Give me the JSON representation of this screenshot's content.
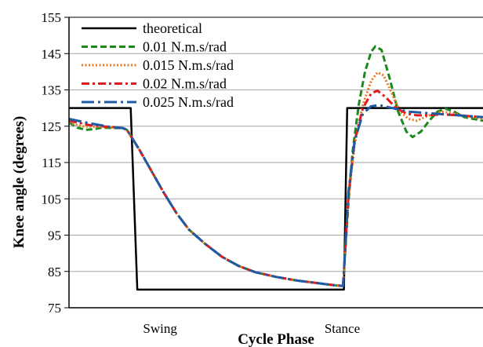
{
  "chart_data": {
    "type": "line",
    "xlabel": "Cycle Phase",
    "ylabel": "Knee angle (degrees)",
    "ylim": [
      75,
      155
    ],
    "yticks": [
      75,
      85,
      95,
      105,
      115,
      125,
      135,
      145,
      155
    ],
    "xlim": [
      0,
      100
    ],
    "xtick_labels": [
      {
        "label": "Swing",
        "x": 22
      },
      {
        "label": "Stance",
        "x": 66
      }
    ],
    "grid": "horizontal",
    "legend_position": "top-left",
    "series": [
      {
        "name": "theoretical",
        "color": "#000000",
        "dash": "solid",
        "points": [
          [
            0,
            130
          ],
          [
            14.9,
            130
          ],
          [
            16.5,
            80
          ],
          [
            66.4,
            80
          ],
          [
            67.2,
            130
          ],
          [
            100,
            130
          ]
        ]
      },
      {
        "name": "0.01 N.m.s/rad",
        "color": "#1a8a1a",
        "dash": "dashed",
        "points": [
          [
            0,
            126
          ],
          [
            2,
            124.6
          ],
          [
            4,
            124
          ],
          [
            6,
            124.2
          ],
          [
            8,
            124.6
          ],
          [
            11,
            124.5
          ],
          [
            13,
            124.5
          ],
          [
            14,
            124
          ],
          [
            17,
            118.5
          ],
          [
            20,
            112.5
          ],
          [
            23,
            106.5
          ],
          [
            26,
            101
          ],
          [
            29,
            96.5
          ],
          [
            33,
            92.5
          ],
          [
            37,
            89
          ],
          [
            41,
            86.5
          ],
          [
            45,
            84.8
          ],
          [
            50,
            83.5
          ],
          [
            55,
            82.5
          ],
          [
            60,
            81.8
          ],
          [
            64,
            81.2
          ],
          [
            66.2,
            81
          ],
          [
            67.5,
            104
          ],
          [
            68.5,
            118
          ],
          [
            70,
            131
          ],
          [
            71.5,
            140
          ],
          [
            73,
            145.5
          ],
          [
            74,
            147
          ],
          [
            75.5,
            146
          ],
          [
            77.5,
            138
          ],
          [
            79.5,
            129
          ],
          [
            81.5,
            123.5
          ],
          [
            83,
            122
          ],
          [
            85,
            123.5
          ],
          [
            87,
            126.5
          ],
          [
            89,
            129
          ],
          [
            91,
            129.8
          ],
          [
            93,
            129
          ],
          [
            95.5,
            127.5
          ],
          [
            100,
            126.5
          ]
        ]
      },
      {
        "name": "0.015 N.m.s/rad",
        "color": "#e87722",
        "dash": "dotted",
        "points": [
          [
            0,
            126
          ],
          [
            3,
            125
          ],
          [
            7,
            124.8
          ],
          [
            11,
            124.6
          ],
          [
            13,
            124.5
          ],
          [
            14,
            124
          ],
          [
            17,
            118.5
          ],
          [
            20,
            112.5
          ],
          [
            23,
            106.5
          ],
          [
            26,
            101
          ],
          [
            29,
            96.5
          ],
          [
            33,
            92.5
          ],
          [
            37,
            89
          ],
          [
            41,
            86.5
          ],
          [
            45,
            84.8
          ],
          [
            50,
            83.5
          ],
          [
            55,
            82.5
          ],
          [
            60,
            81.8
          ],
          [
            64,
            81.2
          ],
          [
            66.2,
            81
          ],
          [
            67.5,
            105
          ],
          [
            69,
            120
          ],
          [
            71,
            131
          ],
          [
            73,
            137.5
          ],
          [
            74.5,
            139.8
          ],
          [
            76,
            139
          ],
          [
            78,
            134
          ],
          [
            80,
            129
          ],
          [
            82,
            127
          ],
          [
            84,
            126.5
          ],
          [
            86,
            127.5
          ],
          [
            88,
            128.5
          ],
          [
            90,
            129
          ],
          [
            93,
            128.5
          ],
          [
            96,
            127.8
          ],
          [
            100,
            127
          ]
        ]
      },
      {
        "name": "0.02 N.m.s/rad",
        "color": "#e31a1c",
        "dash": "dashdot",
        "points": [
          [
            0,
            126.5
          ],
          [
            5,
            125.3
          ],
          [
            10,
            124.8
          ],
          [
            13,
            124.5
          ],
          [
            14,
            124
          ],
          [
            17,
            118.5
          ],
          [
            20,
            112.5
          ],
          [
            23,
            106.5
          ],
          [
            26,
            101
          ],
          [
            29,
            96.5
          ],
          [
            33,
            92.5
          ],
          [
            37,
            89
          ],
          [
            41,
            86.5
          ],
          [
            45,
            84.8
          ],
          [
            50,
            83.5
          ],
          [
            55,
            82.5
          ],
          [
            60,
            81.8
          ],
          [
            64,
            81.2
          ],
          [
            66.2,
            81
          ],
          [
            67.5,
            106
          ],
          [
            69,
            121
          ],
          [
            71,
            130
          ],
          [
            73,
            134
          ],
          [
            74.5,
            134.8
          ],
          [
            76.5,
            133
          ],
          [
            79,
            130
          ],
          [
            81.5,
            128.5
          ],
          [
            84,
            128
          ],
          [
            87,
            128
          ],
          [
            90,
            128.3
          ],
          [
            94,
            128
          ],
          [
            100,
            127.5
          ]
        ]
      },
      {
        "name": "0.025 N.m.s/rad",
        "color": "#1f5aa6",
        "dash": "longdashdot",
        "points": [
          [
            0,
            127
          ],
          [
            5,
            125.8
          ],
          [
            10,
            124.8
          ],
          [
            13,
            124.5
          ],
          [
            14,
            124
          ],
          [
            17,
            118.5
          ],
          [
            20,
            112.5
          ],
          [
            23,
            106.5
          ],
          [
            26,
            101
          ],
          [
            29,
            96.5
          ],
          [
            33,
            92.5
          ],
          [
            37,
            89
          ],
          [
            41,
            86.5
          ],
          [
            45,
            84.8
          ],
          [
            50,
            83.5
          ],
          [
            55,
            82.5
          ],
          [
            60,
            81.8
          ],
          [
            64,
            81.2
          ],
          [
            66.2,
            81
          ],
          [
            67.5,
            107
          ],
          [
            69,
            121
          ],
          [
            71,
            128.5
          ],
          [
            73,
            130.5
          ],
          [
            75,
            130.8
          ],
          [
            78,
            130
          ],
          [
            82,
            129
          ],
          [
            88,
            128.5
          ],
          [
            94,
            128
          ],
          [
            100,
            127.5
          ]
        ]
      }
    ]
  }
}
